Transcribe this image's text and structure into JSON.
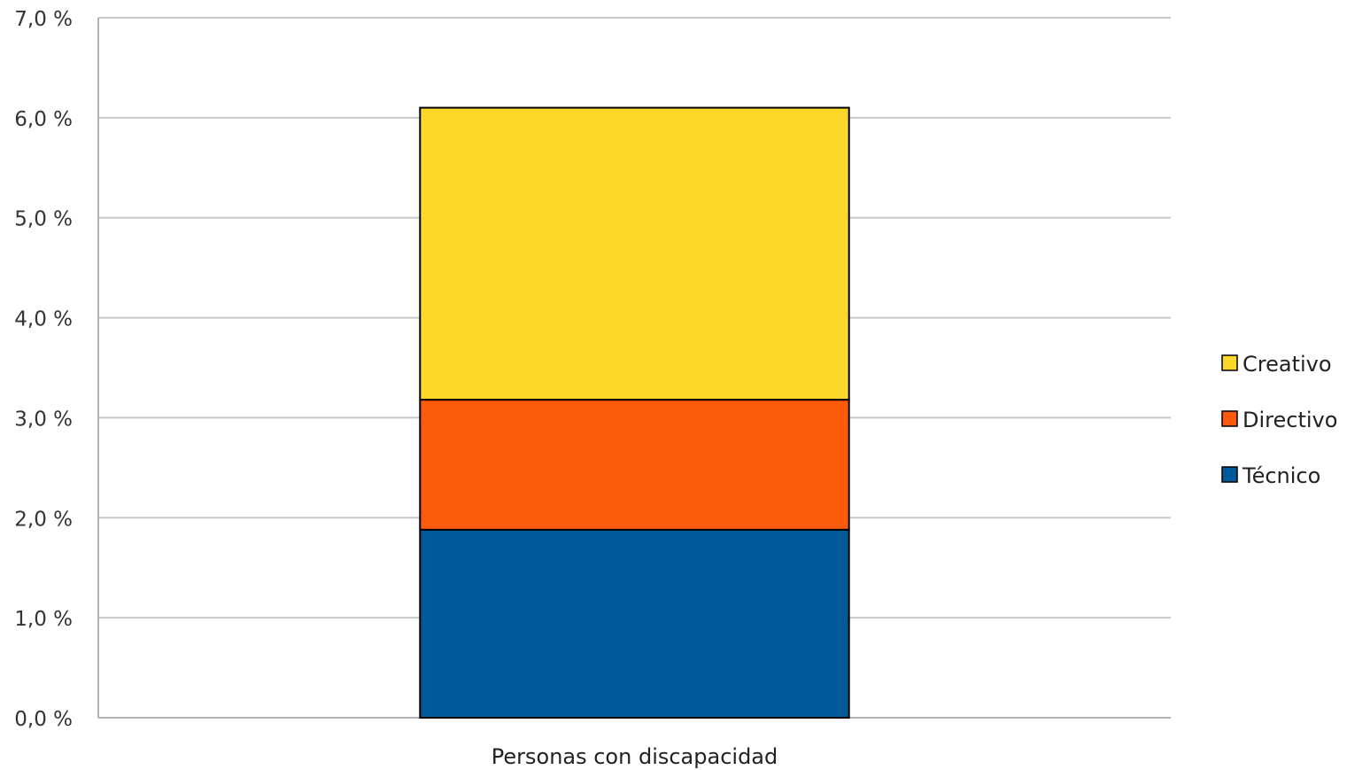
{
  "chart_data": {
    "type": "bar",
    "stacked": true,
    "categories": [
      "Personas con discapacidad"
    ],
    "series": [
      {
        "name": "Técnico",
        "values": [
          1.88
        ],
        "color": "#005a9a"
      },
      {
        "name": "Directivo",
        "values": [
          1.3
        ],
        "color": "#fa5a0a"
      },
      {
        "name": "Creativo",
        "values": [
          2.92
        ],
        "color": "#fcd82a"
      }
    ],
    "legend_order": [
      "Creativo",
      "Directivo",
      "Técnico"
    ],
    "yticks": [
      "0,0 %",
      "1,0 %",
      "2,0 %",
      "3,0 %",
      "4,0 %",
      "5,0 %",
      "6,0 %",
      "7,0 %"
    ],
    "ylim": [
      0,
      7
    ],
    "grid": true,
    "legend_position": "right"
  }
}
